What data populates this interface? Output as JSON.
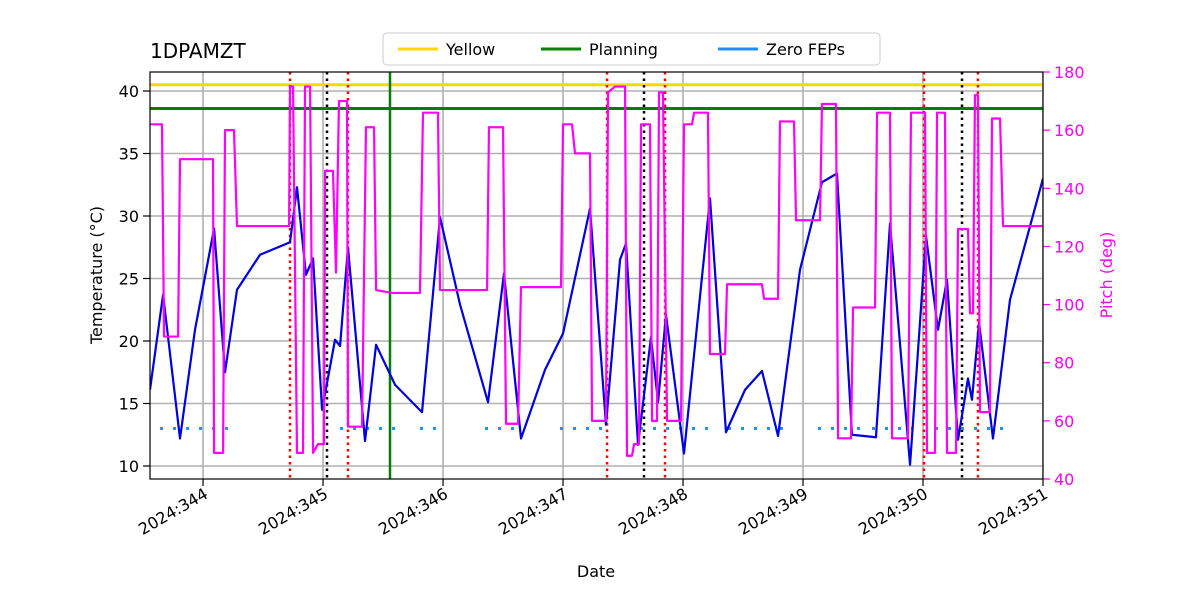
{
  "chart_data": {
    "type": "line",
    "title": "1DPAMZT",
    "xlabel": "Date",
    "ylabel": "Temperature (°C)",
    "y2label": "Pitch (deg)",
    "y2color": "#ff00ff",
    "xlim": [
      343.558,
      351.0
    ],
    "ylim": [
      8.96,
      41.52
    ],
    "y2lim": [
      40,
      180
    ],
    "xticks": [
      {
        "value": 344,
        "label": "2024:344"
      },
      {
        "value": 345,
        "label": "2024:345"
      },
      {
        "value": 346,
        "label": "2024:346"
      },
      {
        "value": 347,
        "label": "2024:347"
      },
      {
        "value": 348,
        "label": "2024:348"
      },
      {
        "value": 349,
        "label": "2024:349"
      },
      {
        "value": 350,
        "label": "2024:350"
      },
      {
        "value": 351,
        "label": "2024:351"
      }
    ],
    "yticks": [
      10,
      15,
      20,
      25,
      30,
      35,
      40
    ],
    "y2ticks": [
      40,
      60,
      80,
      100,
      120,
      140,
      160,
      180
    ],
    "grid": true,
    "legend": "upper center",
    "series": [
      {
        "color": "#0000dd",
        "x": [
          343.558,
          343.667,
          343.808,
          343.933,
          344.092,
          344.183,
          344.283,
          344.475,
          344.725,
          344.783,
          344.858,
          344.917,
          344.992,
          345.1,
          345.142,
          345.208,
          345.35,
          345.442,
          345.6,
          345.825,
          345.975,
          346.142,
          346.375,
          346.508,
          346.65,
          346.85,
          347.0,
          347.225,
          347.358,
          347.475,
          347.525,
          347.625,
          347.733,
          347.792,
          347.858,
          348.008,
          348.225,
          348.358,
          348.517,
          348.658,
          348.792,
          348.975,
          349.158,
          349.283,
          349.408,
          349.608,
          349.725,
          349.892,
          350.025,
          350.125,
          350.2,
          350.292,
          350.375,
          350.408,
          350.467,
          350.583,
          350.725,
          351.0
        ],
        "values": [
          16.1,
          23.7,
          12.2,
          20.9,
          29.0,
          17.5,
          24.1,
          26.9,
          27.9,
          32.3,
          25.3,
          26.6,
          14.5,
          20.1,
          19.6,
          27.5,
          12.0,
          19.7,
          16.5,
          14.3,
          29.9,
          22.9,
          15.1,
          25.4,
          12.2,
          17.7,
          20.6,
          30.6,
          13.3,
          26.5,
          27.8,
          11.7,
          20.3,
          15.1,
          22.1,
          11.0,
          31.4,
          12.7,
          16.1,
          17.6,
          12.4,
          25.7,
          32.7,
          33.4,
          12.5,
          12.3,
          29.4,
          10.1,
          28.4,
          20.9,
          24.9,
          12.1,
          17.0,
          15.3,
          21.5,
          12.2,
          23.3,
          33.0
        ]
      },
      {
        "color": "#ff00ff",
        "axis": "y2",
        "x": [
          343.558,
          343.658,
          343.675,
          343.792,
          343.808,
          344.083,
          344.092,
          344.167,
          344.183,
          344.258,
          344.283,
          344.717,
          344.725,
          344.75,
          344.783,
          344.833,
          344.85,
          344.892,
          344.917,
          344.958,
          345.008,
          345.017,
          345.083,
          345.108,
          345.133,
          345.2,
          345.208,
          345.325,
          345.358,
          345.425,
          345.442,
          345.575,
          345.808,
          345.833,
          345.958,
          345.975,
          346.367,
          346.383,
          346.5,
          346.525,
          346.625,
          346.65,
          346.983,
          347.0,
          347.075,
          347.1,
          347.225,
          347.242,
          347.358,
          347.375,
          347.433,
          347.517,
          347.533,
          347.575,
          347.592,
          347.633,
          347.65,
          347.725,
          347.742,
          347.783,
          347.8,
          347.833,
          347.867,
          347.983,
          348.008,
          348.075,
          348.092,
          348.208,
          348.225,
          348.35,
          348.367,
          348.658,
          348.675,
          348.792,
          348.808,
          348.925,
          348.942,
          349.142,
          349.158,
          349.275,
          349.292,
          349.4,
          349.417,
          349.6,
          349.617,
          349.725,
          349.742,
          349.875,
          349.9,
          350.017,
          350.033,
          350.1,
          350.117,
          350.183,
          350.2,
          350.275,
          350.292,
          350.375,
          350.392,
          350.417,
          350.433,
          350.458,
          350.475,
          350.558,
          350.575,
          350.642,
          350.667,
          351.0
        ],
        "values": [
          162,
          162,
          89,
          89,
          150,
          150,
          49,
          49,
          160,
          160,
          127,
          127,
          175,
          175,
          49,
          49,
          175,
          175,
          49,
          52,
          52,
          146,
          146,
          111,
          170,
          170,
          58,
          58,
          161,
          161,
          105,
          104,
          104,
          166,
          166,
          105,
          105,
          161,
          161,
          59,
          59,
          106,
          106,
          162,
          162,
          152,
          152,
          60,
          60,
          173,
          175,
          175,
          48,
          48,
          52,
          52,
          162,
          162,
          60,
          60,
          173,
          173,
          60,
          60,
          162,
          162,
          166,
          166,
          83,
          83,
          107,
          107,
          102,
          102,
          163,
          163,
          129,
          129,
          169,
          169,
          54,
          54,
          99,
          99,
          166,
          166,
          54,
          54,
          166,
          166,
          49,
          49,
          166,
          166,
          49,
          49,
          126,
          126,
          97,
          97,
          172,
          172,
          63,
          63,
          164,
          164,
          127,
          127
        ]
      }
    ],
    "hlines": [
      {
        "name": "Yellow",
        "color": "#ffd700",
        "value": 40.5
      },
      {
        "name": "Planning",
        "color": "#008000",
        "value": 38.6
      }
    ],
    "zero_feps": {
      "name": "Zero FEPs",
      "color": "#1e90ff",
      "value": 13,
      "segments": [
        [
          343.642,
          344.292
        ],
        [
          345.142,
          345.6
        ],
        [
          345.808,
          346.017
        ],
        [
          346.35,
          346.683
        ],
        [
          346.975,
          347.35
        ],
        [
          347.642,
          348.225
        ],
        [
          348.375,
          348.892
        ],
        [
          349.125,
          349.475
        ],
        [
          349.575,
          349.908
        ],
        [
          350.1,
          350.683
        ]
      ]
    },
    "vlines": [
      {
        "color": "#ff0000",
        "style": "dotted",
        "x": 344.725
      },
      {
        "color": "#ff0000",
        "style": "dotted",
        "x": 345.208
      },
      {
        "color": "#ff0000",
        "style": "dotted",
        "x": 347.367
      },
      {
        "color": "#ff0000",
        "style": "dotted",
        "x": 347.85
      },
      {
        "color": "#ff0000",
        "style": "dotted",
        "x": 350.008
      },
      {
        "color": "#ff0000",
        "style": "dotted",
        "x": 350.458
      },
      {
        "color": "#000000",
        "style": "dotted",
        "x": 345.033
      },
      {
        "color": "#000000",
        "style": "dotted",
        "x": 347.675
      },
      {
        "color": "#000000",
        "style": "dotted",
        "x": 350.325
      },
      {
        "color": "#008000",
        "style": "solid",
        "x": 345.558
      }
    ]
  }
}
